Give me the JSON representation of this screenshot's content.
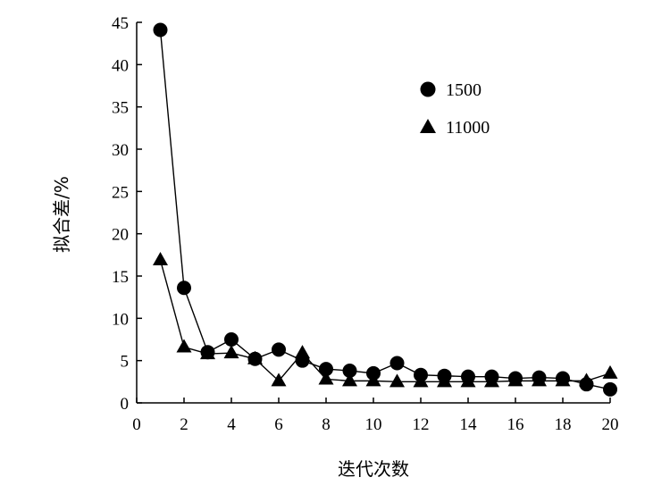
{
  "chart_data": {
    "type": "line",
    "xlabel": "迭代次数",
    "ylabel": "拟合差/%",
    "xlim": [
      0,
      20
    ],
    "ylim": [
      0,
      45
    ],
    "xticks": [
      0,
      2,
      4,
      6,
      8,
      10,
      12,
      14,
      16,
      18,
      20
    ],
    "yticks": [
      0,
      5,
      10,
      15,
      20,
      25,
      30,
      35,
      40,
      45
    ],
    "grid": false,
    "legend_position": "top-right",
    "series": [
      {
        "name": "1500",
        "marker": "circle",
        "x": [
          1,
          2,
          3,
          4,
          5,
          6,
          7,
          8,
          9,
          10,
          11,
          12,
          13,
          14,
          15,
          16,
          17,
          18,
          19,
          20
        ],
        "values": [
          44.1,
          13.6,
          6.0,
          7.5,
          5.2,
          6.3,
          5.0,
          4.0,
          3.8,
          3.5,
          4.7,
          3.3,
          3.2,
          3.1,
          3.1,
          2.9,
          3.0,
          2.9,
          2.2,
          1.6
        ]
      },
      {
        "name": "11000",
        "marker": "triangle",
        "x": [
          1,
          2,
          3,
          4,
          5,
          6,
          7,
          8,
          9,
          10,
          11,
          12,
          13,
          14,
          15,
          16,
          17,
          18,
          19,
          20
        ],
        "values": [
          16.9,
          6.6,
          5.8,
          5.9,
          5.2,
          2.6,
          5.9,
          2.8,
          2.6,
          2.6,
          2.5,
          2.5,
          2.5,
          2.5,
          2.5,
          2.6,
          2.6,
          2.6,
          2.6,
          3.5
        ]
      }
    ]
  }
}
